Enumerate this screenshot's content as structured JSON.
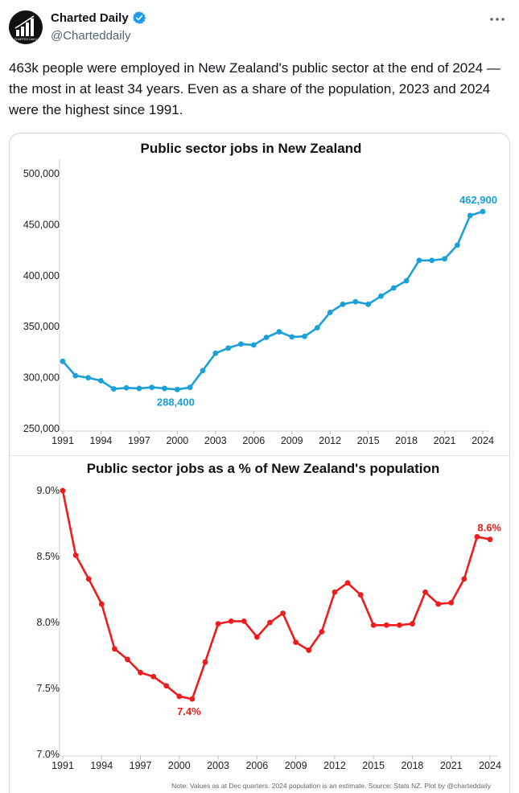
{
  "author": {
    "name": "Charted Daily",
    "handle": "@Charteddaily",
    "avatar_text": "CHARTED DAILY"
  },
  "tweet": {
    "text": "463k people were employed in New Zealand's public sector at the end of 2024 — the most in at least 34 years. Even as a share of the population, 2023 and 2024 were the highest since 1991."
  },
  "icons": {
    "verified": "verified-badge-icon",
    "more": "more-options-icon"
  },
  "chart_data": [
    {
      "type": "line",
      "title": "Public sector jobs in New Zealand",
      "color": "#1ba0d7",
      "x": [
        1991,
        1992,
        1993,
        1994,
        1995,
        1996,
        1997,
        1998,
        1999,
        2000,
        2001,
        2002,
        2003,
        2004,
        2005,
        2006,
        2007,
        2008,
        2009,
        2010,
        2011,
        2012,
        2013,
        2014,
        2015,
        2016,
        2017,
        2018,
        2019,
        2020,
        2021,
        2022,
        2023,
        2024
      ],
      "y": [
        316000,
        302000,
        300000,
        297000,
        289000,
        290000,
        289500,
        290500,
        289500,
        288400,
        290500,
        307000,
        324000,
        329000,
        333000,
        332000,
        339500,
        345000,
        340000,
        340500,
        349000,
        364000,
        372000,
        374500,
        372000,
        380000,
        388000,
        395000,
        415000,
        415000,
        416500,
        430000,
        459000,
        462900
      ],
      "xticks": [
        1991,
        1994,
        1997,
        2000,
        2003,
        2006,
        2009,
        2012,
        2015,
        2018,
        2021,
        2024
      ],
      "ytick_labels": [
        "250,000",
        "300,000",
        "350,000",
        "400,000",
        "450,000",
        "500,000"
      ],
      "yticks": [
        250000,
        300000,
        350000,
        400000,
        450000,
        500000
      ],
      "ylim": [
        250000,
        500000
      ],
      "annotations": [
        {
          "label": "288,400",
          "x": 2000,
          "y": 288400
        },
        {
          "label": "462,900",
          "x": 2024,
          "y": 462900
        }
      ]
    },
    {
      "type": "line",
      "title": "Public sector jobs as a % of New Zealand's population",
      "color": "#ee1c1c",
      "x": [
        1991,
        1992,
        1993,
        1994,
        1995,
        1996,
        1997,
        1998,
        1999,
        2000,
        2001,
        2002,
        2003,
        2004,
        2005,
        2006,
        2007,
        2008,
        2009,
        2010,
        2011,
        2012,
        2013,
        2014,
        2015,
        2016,
        2017,
        2018,
        2019,
        2020,
        2021,
        2022,
        2023,
        2024
      ],
      "y": [
        9.0,
        8.51,
        8.33,
        8.14,
        7.8,
        7.72,
        7.62,
        7.59,
        7.52,
        7.44,
        7.42,
        7.7,
        7.99,
        8.01,
        8.01,
        7.89,
        8.0,
        8.07,
        7.85,
        7.79,
        7.93,
        8.23,
        8.3,
        8.21,
        7.98,
        7.98,
        7.98,
        7.99,
        8.23,
        8.14,
        8.15,
        8.33,
        8.65,
        8.63
      ],
      "xticks": [
        1991,
        1994,
        1997,
        2000,
        2003,
        2006,
        2009,
        2012,
        2015,
        2018,
        2021,
        2024
      ],
      "ytick_labels": [
        "7.0%",
        "7.5%",
        "8.0%",
        "8.5%",
        "9.0%"
      ],
      "yticks": [
        7.0,
        7.5,
        8.0,
        8.5,
        9.0
      ],
      "ylim": [
        7.0,
        9.0
      ],
      "annotations": [
        {
          "label": "7.4%",
          "x": 2001,
          "y": 7.42
        },
        {
          "label": "8.6%",
          "x": 2024,
          "y": 8.63
        }
      ],
      "note": "Note: Values as at Dec quarters. 2024 population is an estimate. Source: Stats NZ. Plot by @charteddaily"
    }
  ]
}
